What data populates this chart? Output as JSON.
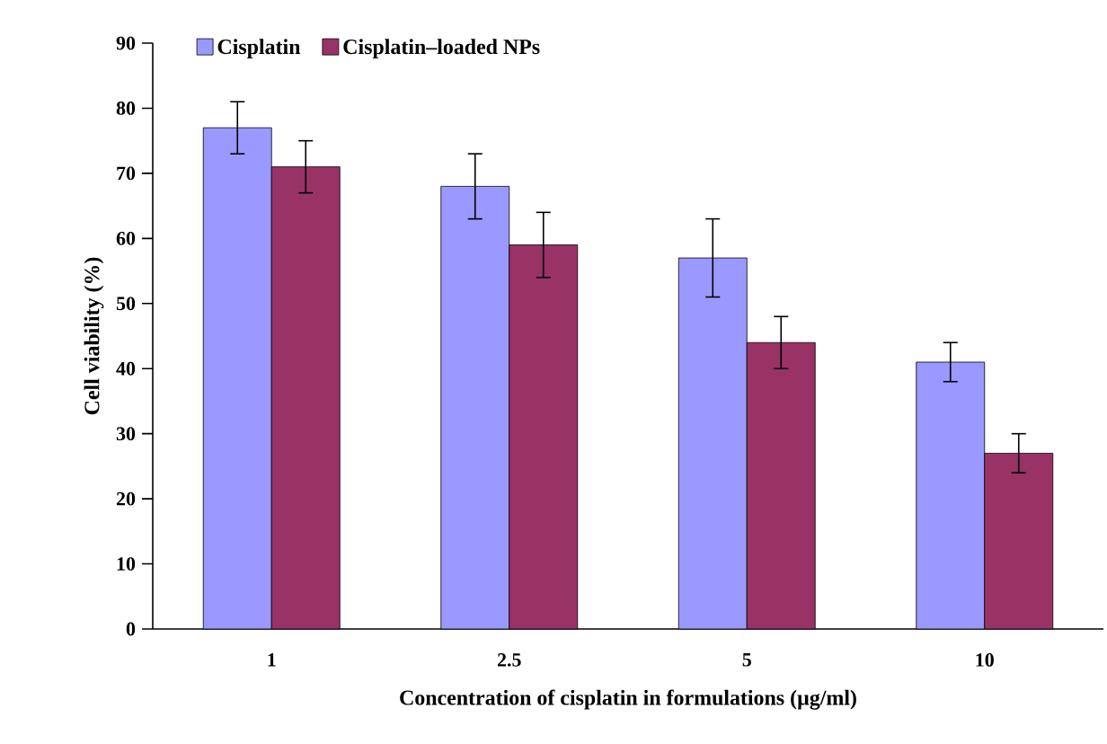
{
  "chart_data": {
    "type": "bar",
    "xlabel": "Concentration of cisplatin in formulations (µg/ml)",
    "ylabel": "Cell viability (%)",
    "categories": [
      "1",
      "2.5",
      "5",
      "10"
    ],
    "series": [
      {
        "name": "Cisplatin",
        "color": "#9999ff",
        "values": [
          77,
          68,
          57,
          41
        ],
        "errors": [
          4,
          5,
          6,
          3
        ]
      },
      {
        "name": "Cisplatin–loaded NPs",
        "color": "#993366",
        "values": [
          71,
          59,
          44,
          27
        ],
        "errors": [
          4,
          5,
          4,
          3
        ]
      }
    ],
    "ylim": [
      0,
      90
    ],
    "yticks": [
      0,
      10,
      20,
      30,
      40,
      50,
      60,
      70,
      80,
      90
    ],
    "grid": false,
    "legend": "top left"
  }
}
